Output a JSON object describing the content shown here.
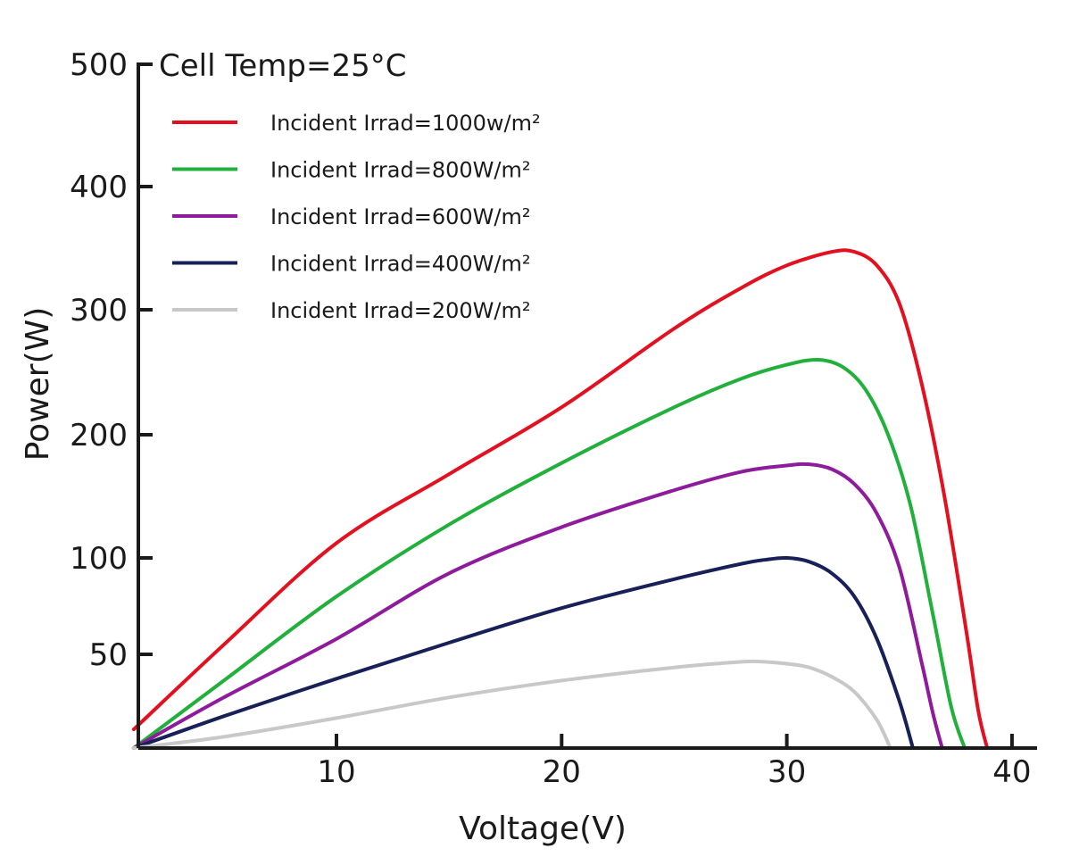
{
  "chart_data": {
    "type": "line",
    "annotation": "Cell Temp=25°C",
    "xlabel": "Voltage(V)",
    "ylabel": "Power(W)",
    "xlim": [
      1,
      41
    ],
    "ylim": [
      0,
      500
    ],
    "x_ticks": [
      10,
      20,
      30,
      40
    ],
    "y_ticks": [
      50,
      100,
      200,
      300,
      400,
      500
    ],
    "grid": false,
    "legend_position": "top-left",
    "series": [
      {
        "name": "Incident Irrad=1000w/m²",
        "color": "#e3101f",
        "x": [
          1,
          5,
          10,
          15,
          20,
          25,
          28,
          30,
          32,
          33,
          34,
          35,
          36,
          37,
          38,
          38.5,
          38.9
        ],
        "y": [
          10,
          55,
          112,
          168,
          222,
          285,
          318,
          336,
          347,
          347,
          336,
          305,
          240,
          150,
          60,
          20,
          0
        ]
      },
      {
        "name": "Incident Irrad=800W/m²",
        "color": "#22b03c",
        "x": [
          1,
          5,
          10,
          15,
          20,
          25,
          28,
          30,
          31.4,
          32.5,
          33.5,
          34.5,
          35.5,
          36.5,
          37.3,
          37.9
        ],
        "y": [
          0,
          36,
          80,
          127,
          177,
          222,
          245,
          256,
          260,
          254,
          236,
          200,
          142,
          70,
          22,
          0
        ]
      },
      {
        "name": "Incident Irrad=600W/m²",
        "color": "#8e1b9b",
        "x": [
          1,
          5,
          10,
          15,
          20,
          25,
          28,
          30,
          31,
          32,
          33,
          34,
          35,
          36,
          36.5,
          36.9
        ],
        "y": [
          0,
          27,
          58,
          92,
          125,
          155,
          170,
          175,
          176,
          172,
          160,
          136,
          95,
          45,
          18,
          0
        ]
      },
      {
        "name": "Incident Irrad=400W/m²",
        "color": "#172058",
        "x": [
          1,
          5,
          10,
          15,
          20,
          25,
          28,
          29,
          30,
          31,
          32,
          33,
          34,
          35,
          35.6
        ],
        "y": [
          0,
          17,
          37,
          56,
          74,
          89,
          97,
          99,
          100,
          98,
          92,
          80,
          58,
          25,
          0
        ]
      },
      {
        "name": "Incident Irrad=200W/m²",
        "color": "#c8c8c8",
        "x": [
          1,
          5,
          10,
          15,
          20,
          25,
          28,
          29,
          30,
          31,
          32,
          33,
          34,
          34.6
        ],
        "y": [
          0,
          6,
          16,
          27,
          36,
          43,
          46,
          46,
          45,
          43,
          38,
          30,
          15,
          0
        ]
      }
    ]
  }
}
